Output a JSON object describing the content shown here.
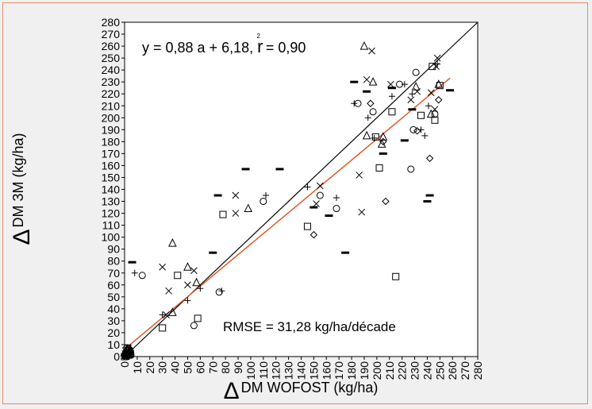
{
  "chart_data": {
    "type": "scatter",
    "equation": "y = 0,88 a + 6,18, ",
    "r_label": "r",
    "r_superscript": "2",
    "r_value": " = 0,90",
    "rmse": "RMSE = 31,28 kg/ha/décade",
    "xlabel_delta": "Δ",
    "xlabel_rest": "DM WOFOST (kg/ha)",
    "ylabel_delta": "Δ",
    "ylabel_rest": "DM 3M (kg/ha)",
    "xlim": [
      0,
      280
    ],
    "ylim": [
      0,
      280
    ],
    "ticks": [
      0,
      10,
      20,
      30,
      40,
      50,
      60,
      70,
      80,
      90,
      100,
      110,
      120,
      130,
      140,
      150,
      160,
      170,
      180,
      190,
      200,
      210,
      220,
      230,
      240,
      250,
      260,
      270,
      280
    ],
    "one_to_one_line": [
      [
        0,
        0
      ],
      [
        280,
        280
      ]
    ],
    "regression": {
      "slope": 0.88,
      "intercept": 6.18,
      "x_range": [
        0,
        258
      ],
      "color": "#e0521e"
    },
    "series": [
      {
        "marker": "cross",
        "points": [
          [
            3,
            5
          ],
          [
            8,
            70
          ],
          [
            30,
            35
          ],
          [
            50,
            47
          ],
          [
            60,
            57
          ],
          [
            77,
            55
          ],
          [
            112,
            135
          ],
          [
            145,
            142
          ],
          [
            168,
            133
          ],
          [
            182,
            212
          ],
          [
            193,
            200
          ],
          [
            198,
            183
          ],
          [
            212,
            218
          ],
          [
            222,
            228
          ],
          [
            228,
            220
          ],
          [
            238,
            185
          ],
          [
            241,
            210
          ],
          [
            235,
            190
          ],
          [
            248,
            245
          ]
        ]
      },
      {
        "marker": "x",
        "points": [
          [
            2,
            4
          ],
          [
            5,
            3
          ],
          [
            30,
            75
          ],
          [
            35,
            55
          ],
          [
            33,
            35
          ],
          [
            50,
            60
          ],
          [
            55,
            72
          ],
          [
            88,
            135
          ],
          [
            88,
            120
          ],
          [
            152,
            128
          ],
          [
            155,
            143
          ],
          [
            186,
            152
          ],
          [
            188,
            121
          ],
          [
            192,
            232
          ],
          [
            196,
            256
          ],
          [
            211,
            228
          ],
          [
            227,
            215
          ],
          [
            232,
            222
          ],
          [
            243,
            221
          ],
          [
            246,
            207
          ],
          [
            248,
            250
          ],
          [
            247,
            243
          ]
        ]
      },
      {
        "marker": "triangle",
        "points": [
          [
            3,
            3
          ],
          [
            38,
            95
          ],
          [
            38,
            37
          ],
          [
            50,
            75
          ],
          [
            57,
            62
          ],
          [
            98,
            124
          ],
          [
            190,
            260
          ],
          [
            192,
            185
          ],
          [
            197,
            230
          ],
          [
            204,
            178
          ],
          [
            205,
            184
          ],
          [
            231,
            226
          ],
          [
            243,
            203
          ],
          [
            249,
            228
          ]
        ]
      },
      {
        "marker": "circle",
        "points": [
          [
            2,
            2
          ],
          [
            14,
            68
          ],
          [
            55,
            26
          ],
          [
            75,
            54
          ],
          [
            110,
            130
          ],
          [
            155,
            135
          ],
          [
            168,
            124
          ],
          [
            185,
            212
          ],
          [
            197,
            205
          ],
          [
            218,
            228
          ],
          [
            227,
            157
          ],
          [
            229,
            190
          ],
          [
            231,
            238
          ],
          [
            246,
            203
          ]
        ]
      },
      {
        "marker": "square",
        "points": [
          [
            1,
            1
          ],
          [
            4,
            2
          ],
          [
            30,
            24
          ],
          [
            42,
            68
          ],
          [
            58,
            32
          ],
          [
            78,
            119
          ],
          [
            145,
            109
          ],
          [
            199,
            184
          ],
          [
            202,
            158
          ],
          [
            212,
            205
          ],
          [
            235,
            202
          ],
          [
            244,
            243
          ],
          [
            246,
            198
          ],
          [
            250,
            227
          ],
          [
            215,
            67
          ]
        ]
      },
      {
        "marker": "diamond",
        "points": [
          [
            2,
            3
          ],
          [
            150,
            102
          ],
          [
            195,
            212
          ],
          [
            205,
            180
          ],
          [
            207,
            130
          ],
          [
            232,
            189
          ],
          [
            242,
            166
          ],
          [
            249,
            215
          ]
        ]
      },
      {
        "marker": "dash",
        "points": [
          [
            6,
            79
          ],
          [
            70,
            87
          ],
          [
            74,
            135
          ],
          [
            96,
            157
          ],
          [
            123,
            157
          ],
          [
            162,
            118
          ],
          [
            175,
            87
          ],
          [
            182,
            230
          ],
          [
            192,
            222
          ],
          [
            205,
            170
          ],
          [
            212,
            225
          ],
          [
            222,
            181
          ],
          [
            228,
            207
          ],
          [
            240,
            130
          ],
          [
            242,
            135
          ],
          [
            258,
            223
          ],
          [
            150,
            125
          ]
        ]
      }
    ]
  }
}
